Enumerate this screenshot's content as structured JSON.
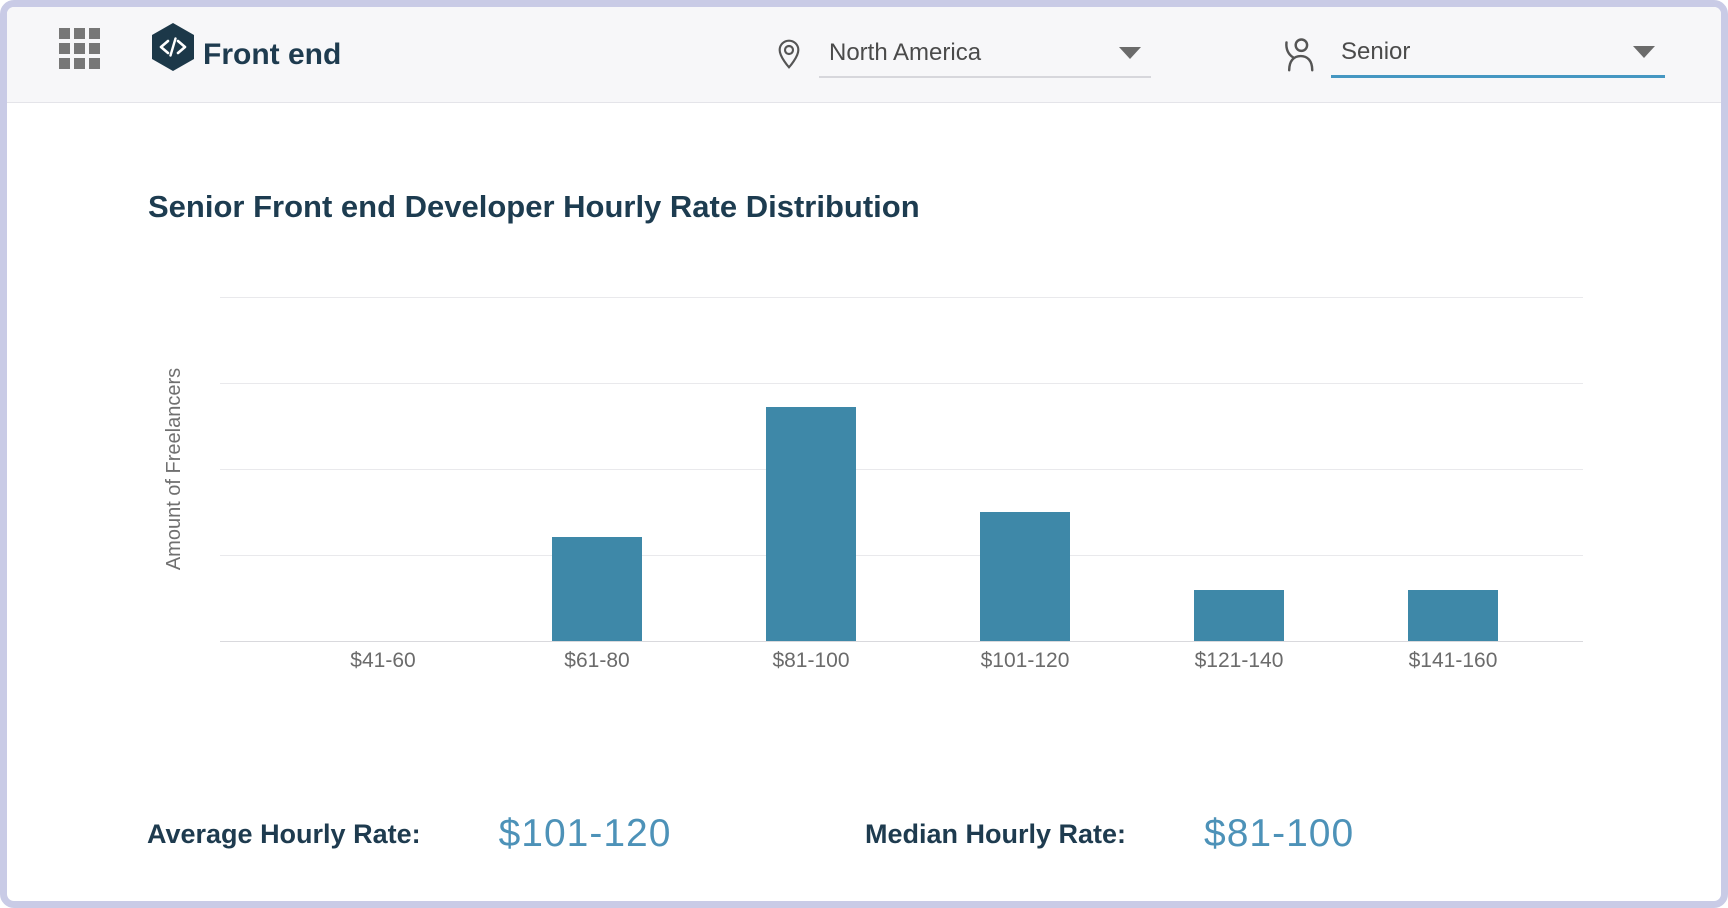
{
  "header": {
    "app_title": "Front end",
    "menu_icon": "grid-menu-icon",
    "logo_icon": "code-hexagon-icon"
  },
  "filters": {
    "location": {
      "icon": "location-pin-icon",
      "value": "North America"
    },
    "seniority": {
      "icon": "seniority-person-icon",
      "value": "Senior"
    }
  },
  "chart_data": {
    "type": "bar",
    "title": "Senior Front end Developer Hourly Rate Distribution",
    "categories": [
      "$41-60",
      "$61-80",
      "$81-100",
      "$101-120",
      "$121-140",
      "$141-160"
    ],
    "values": [
      0,
      1.22,
      2.74,
      1.51,
      0.6,
      0.6
    ],
    "xlabel": "",
    "ylabel": "Amount of Freelancers",
    "ylim": [
      0,
      4.7
    ],
    "grid": "horizontal",
    "gridline_count": 4,
    "legend": "none",
    "bar_color": "#3e88a8",
    "note": "y-axis has no numeric tick labels; values estimated in gridline units (1 unit = one horizontal gridline spacing)"
  },
  "stats": {
    "average": {
      "label": "Average Hourly Rate:",
      "value": "$101-120"
    },
    "median": {
      "label": "Median Hourly Rate:",
      "value": "$81-100"
    }
  },
  "colors": {
    "frame_border": "#c9cbe6",
    "header_bg": "#f7f7f9",
    "dark_navy": "#1e3b4f",
    "bar": "#3e88a8",
    "stat_value_blue": "#4d92b8",
    "active_underline": "#4597c2",
    "inactive_underline": "#d7d7dc",
    "gridline": "#e9e9ec",
    "tick_text": "#6b6b6b"
  }
}
